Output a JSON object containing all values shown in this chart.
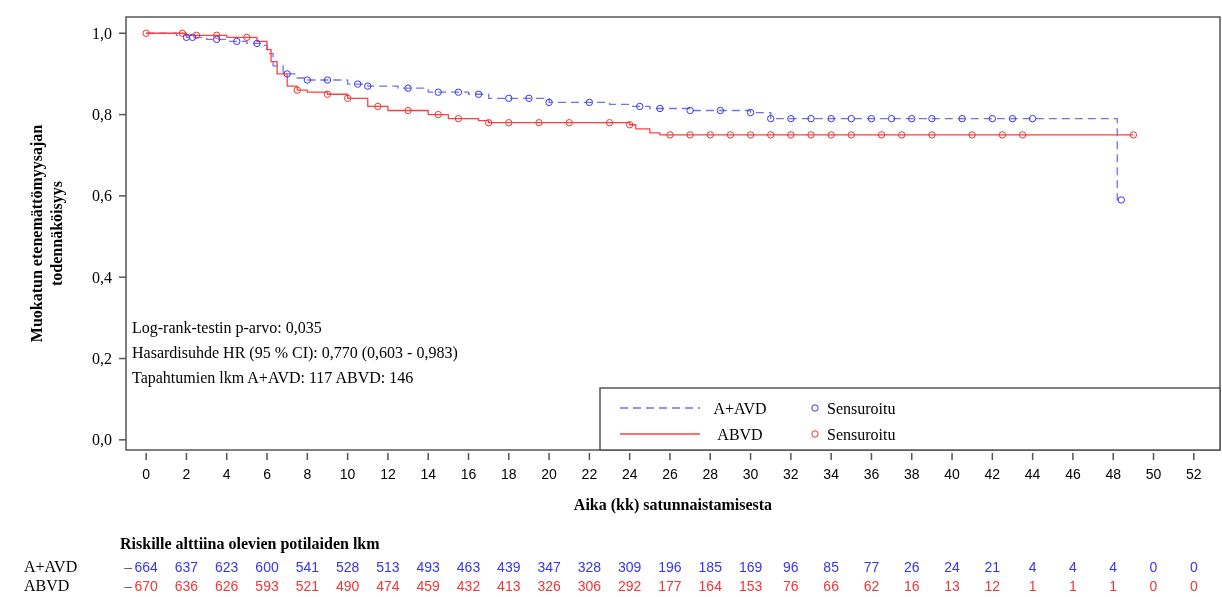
{
  "chart_data": {
    "type": "step",
    "xlabel": "Aika (kk) satunnaistamisesta",
    "ylabel": "Muokatun etenemättömyysajan\ntodennäköisyys",
    "xlim": [
      -1,
      53.3
    ],
    "ylim": [
      -0.025,
      1.04
    ],
    "xticks": [
      0,
      2,
      4,
      6,
      8,
      10,
      12,
      14,
      16,
      18,
      20,
      22,
      24,
      26,
      28,
      30,
      32,
      34,
      36,
      38,
      40,
      42,
      44,
      46,
      48,
      50,
      52
    ],
    "yticks": [
      {
        "value": 0,
        "label": "0,0"
      },
      {
        "value": 0.2,
        "label": "0,2"
      },
      {
        "value": 0.4,
        "label": "0,4"
      },
      {
        "value": 0.6,
        "label": "0,6"
      },
      {
        "value": 0.8,
        "label": "0,8"
      },
      {
        "value": 1,
        "label": "1,0"
      }
    ],
    "grid": false,
    "legend": "bottom right",
    "series": [
      {
        "name": "A+AVD",
        "color": "#7070f0",
        "line_style": "dashed",
        "x": [
          0,
          1.5,
          2,
          3,
          4,
          5,
          5.8,
          6,
          6.3,
          6.8,
          7.5,
          8,
          10,
          11,
          12.5,
          14,
          16,
          17,
          20,
          23,
          24,
          25,
          27,
          30,
          31,
          48.2,
          48.4
        ],
        "values": [
          1,
          0.995,
          0.99,
          0.985,
          0.98,
          0.975,
          0.97,
          0.95,
          0.92,
          0.9,
          0.89,
          0.885,
          0.875,
          0.87,
          0.865,
          0.855,
          0.85,
          0.84,
          0.83,
          0.825,
          0.82,
          0.815,
          0.81,
          0.805,
          0.79,
          0.59,
          0.59
        ]
      },
      {
        "name": "ABVD",
        "color": "#ff4040",
        "line_style": "solid",
        "x": [
          0,
          2,
          4,
          5.5,
          6,
          6.2,
          6.5,
          7,
          7.5,
          8,
          9,
          10,
          11,
          12,
          14,
          15,
          16.5,
          17,
          24,
          24.3,
          25,
          25.5,
          49
        ],
        "values": [
          1,
          0.995,
          0.99,
          0.98,
          0.96,
          0.93,
          0.9,
          0.87,
          0.86,
          0.855,
          0.85,
          0.84,
          0.82,
          0.81,
          0.8,
          0.79,
          0.785,
          0.78,
          0.775,
          0.765,
          0.755,
          0.75,
          0.75
        ]
      },
      {
        "name": "Sensuroitu",
        "type": "scatter",
        "marker": "circle",
        "color": "#3535f0",
        "x": [
          2,
          2.3,
          3.5,
          4.5,
          5.5,
          7,
          8,
          9,
          10.5,
          11,
          13,
          14.5,
          15.5,
          16.5,
          18,
          19,
          20,
          22,
          24.5,
          25.5,
          27,
          28.5,
          30,
          31,
          32,
          33,
          34,
          35,
          36,
          37,
          38,
          39,
          40.5,
          42,
          43,
          44,
          48.4
        ],
        "values": [
          0.99,
          0.99,
          0.985,
          0.98,
          0.975,
          0.9,
          0.885,
          0.885,
          0.875,
          0.87,
          0.865,
          0.855,
          0.855,
          0.85,
          0.84,
          0.84,
          0.83,
          0.83,
          0.82,
          0.815,
          0.81,
          0.81,
          0.805,
          0.79,
          0.79,
          0.79,
          0.79,
          0.79,
          0.79,
          0.79,
          0.79,
          0.79,
          0.79,
          0.79,
          0.79,
          0.79,
          0.59
        ]
      },
      {
        "name": "Sensuroitu",
        "type": "scatter",
        "marker": "circle",
        "color": "#f03535",
        "x": [
          0,
          1.8,
          2.5,
          3.5,
          5,
          7.5,
          9,
          10,
          11.5,
          13,
          14.5,
          15.5,
          17,
          18,
          19.5,
          21,
          23,
          24,
          26,
          27,
          28,
          29,
          30,
          31,
          32,
          33,
          34,
          35,
          36.5,
          37.5,
          39,
          41,
          42.5,
          43.5,
          49
        ],
        "values": [
          1,
          1,
          0.995,
          0.995,
          0.99,
          0.86,
          0.85,
          0.84,
          0.82,
          0.81,
          0.8,
          0.79,
          0.78,
          0.78,
          0.78,
          0.78,
          0.78,
          0.775,
          0.75,
          0.75,
          0.75,
          0.75,
          0.75,
          0.75,
          0.75,
          0.75,
          0.75,
          0.75,
          0.75,
          0.75,
          0.75,
          0.75,
          0.75,
          0.75,
          0.75
        ]
      }
    ],
    "annotations": [
      "Log-rank-testin p-arvo: 0,035",
      "Hasardisuhde HR (95 % CI): 0,770 (0,603 - 0,983)",
      "Tapahtumien lkm A+AVD: 117  ABVD: 146",
      "Riskille alttiina olevien potilaiden lkm",
      "A+AVD – 664 637 623 600 541 528 513 493 463 439 347 328 309 196 185 169 96 85 77 26 24 21 4 4 4 0 0",
      "ABVD – 670 636 626 593 521 490 474 459 432 413 326 306 292 177 164 153 76 66 62 16 13 12 1 1 1 0 0"
    ]
  }
}
